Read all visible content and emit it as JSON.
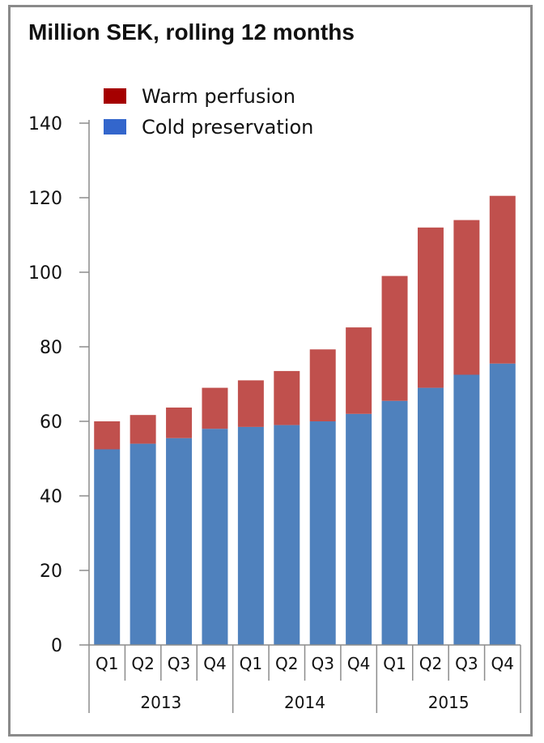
{
  "chart_data": {
    "type": "bar",
    "stacked": true,
    "title": "Million SEK, rolling 12 months",
    "categories": [
      "Q1",
      "Q2",
      "Q3",
      "Q4",
      "Q1",
      "Q2",
      "Q3",
      "Q4",
      "Q1",
      "Q2",
      "Q3",
      "Q4"
    ],
    "groups": [
      {
        "label": "2013",
        "count": 4
      },
      {
        "label": "2014",
        "count": 4
      },
      {
        "label": "2015",
        "count": 4
      }
    ],
    "series": [
      {
        "name": "Cold preservation",
        "color": "#4f81bd",
        "values": [
          52.5,
          54,
          55.5,
          58,
          58.5,
          59,
          60,
          62,
          65.5,
          69,
          72.5,
          75.5
        ]
      },
      {
        "name": "Warm perfusion",
        "color": "#c0504d",
        "values": [
          7.5,
          7.7,
          8.2,
          11,
          12.5,
          14.5,
          19.3,
          23.2,
          33.5,
          43,
          41.5,
          45
        ]
      }
    ],
    "legend": [
      {
        "name": "Warm perfusion",
        "color": "#a50000"
      },
      {
        "name": "Cold preservation",
        "color": "#3366cc"
      }
    ],
    "yticks": [
      0,
      20,
      40,
      60,
      80,
      100,
      120,
      140
    ],
    "ylim": [
      0,
      140
    ],
    "grid": false,
    "legend_position": "top-left"
  }
}
